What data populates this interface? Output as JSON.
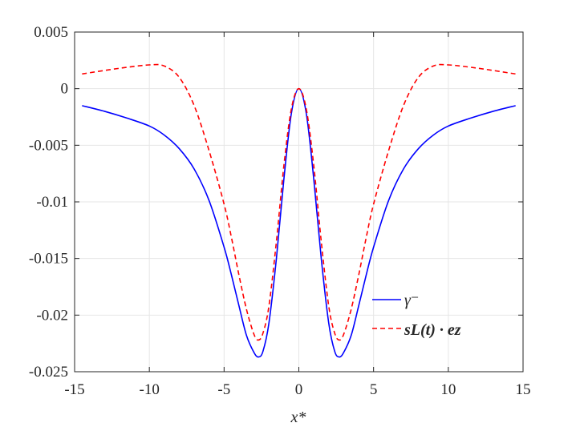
{
  "chart_data": {
    "type": "line",
    "title": "",
    "xlabel": "x*",
    "ylabel": "",
    "xlim": [
      -15,
      15
    ],
    "ylim": [
      -0.025,
      0.005
    ],
    "grid": true,
    "legend_position": "bottom-right",
    "x_ticks": [
      -15,
      -10,
      -5,
      0,
      5,
      10,
      15
    ],
    "x_tick_labels": [
      "-15",
      "-10",
      "-5",
      "0",
      "5",
      "10",
      "15"
    ],
    "y_ticks": [
      0.005,
      0,
      -0.005,
      -0.01,
      -0.015,
      -0.02,
      -0.025
    ],
    "y_tick_labels": [
      "0.005",
      "0",
      "-0.005",
      "-0.01",
      "-0.015",
      "-0.02",
      "-0.025"
    ],
    "series": [
      {
        "name": "γ⁻",
        "color": "#0000ff",
        "style": "solid",
        "points": [
          [
            -14.5,
            -0.0015
          ],
          [
            -13,
            -0.002
          ],
          [
            -11.5,
            -0.0026
          ],
          [
            -10,
            -0.0033
          ],
          [
            -9,
            -0.0041
          ],
          [
            -8,
            -0.0053
          ],
          [
            -7,
            -0.0071
          ],
          [
            -6,
            -0.0099
          ],
          [
            -5,
            -0.014
          ],
          [
            -4.5,
            -0.0165
          ],
          [
            -4,
            -0.0192
          ],
          [
            -3.5,
            -0.0218
          ],
          [
            -3,
            -0.0233
          ],
          [
            -2.7,
            -0.0237
          ],
          [
            -2.4,
            -0.0232
          ],
          [
            -2,
            -0.0207
          ],
          [
            -1.5,
            -0.015
          ],
          [
            -1,
            -0.008
          ],
          [
            -0.5,
            -0.0022
          ],
          [
            0,
            0
          ],
          [
            0.5,
            -0.0022
          ],
          [
            1,
            -0.008
          ],
          [
            1.5,
            -0.015
          ],
          [
            2,
            -0.0207
          ],
          [
            2.4,
            -0.0232
          ],
          [
            2.7,
            -0.0237
          ],
          [
            3,
            -0.0233
          ],
          [
            3.5,
            -0.0218
          ],
          [
            4,
            -0.0192
          ],
          [
            4.5,
            -0.0165
          ],
          [
            5,
            -0.014
          ],
          [
            6,
            -0.0099
          ],
          [
            7,
            -0.0071
          ],
          [
            8,
            -0.0053
          ],
          [
            9,
            -0.0041
          ],
          [
            10,
            -0.0033
          ],
          [
            11.5,
            -0.0026
          ],
          [
            13,
            -0.002
          ],
          [
            14.5,
            -0.0015
          ]
        ]
      },
      {
        "name": "sL(t) · ez",
        "color": "#ff0000",
        "style": "dashed",
        "points": [
          [
            -14.5,
            0.0013
          ],
          [
            -12,
            0.0018
          ],
          [
            -10,
            0.0021
          ],
          [
            -9,
            0.002
          ],
          [
            -8,
            0.001
          ],
          [
            -7,
            -0.0015
          ],
          [
            -6,
            -0.0055
          ],
          [
            -5,
            -0.0102
          ],
          [
            -4.5,
            -0.0132
          ],
          [
            -4,
            -0.0165
          ],
          [
            -3.5,
            -0.0195
          ],
          [
            -3,
            -0.0217
          ],
          [
            -2.7,
            -0.0222
          ],
          [
            -2.4,
            -0.0216
          ],
          [
            -2,
            -0.0192
          ],
          [
            -1.5,
            -0.0135
          ],
          [
            -1,
            -0.0068
          ],
          [
            -0.5,
            -0.0018
          ],
          [
            0,
            0
          ],
          [
            0.5,
            -0.0018
          ],
          [
            1,
            -0.0068
          ],
          [
            1.5,
            -0.0135
          ],
          [
            2,
            -0.0192
          ],
          [
            2.4,
            -0.0216
          ],
          [
            2.7,
            -0.0222
          ],
          [
            3,
            -0.0217
          ],
          [
            3.5,
            -0.0195
          ],
          [
            4,
            -0.0165
          ],
          [
            4.5,
            -0.0132
          ],
          [
            5,
            -0.0102
          ],
          [
            6,
            -0.0055
          ],
          [
            7,
            -0.0015
          ],
          [
            8,
            0.001
          ],
          [
            9,
            0.002
          ],
          [
            10,
            0.0021
          ],
          [
            12,
            0.0018
          ],
          [
            14.5,
            0.0013
          ]
        ]
      }
    ]
  }
}
